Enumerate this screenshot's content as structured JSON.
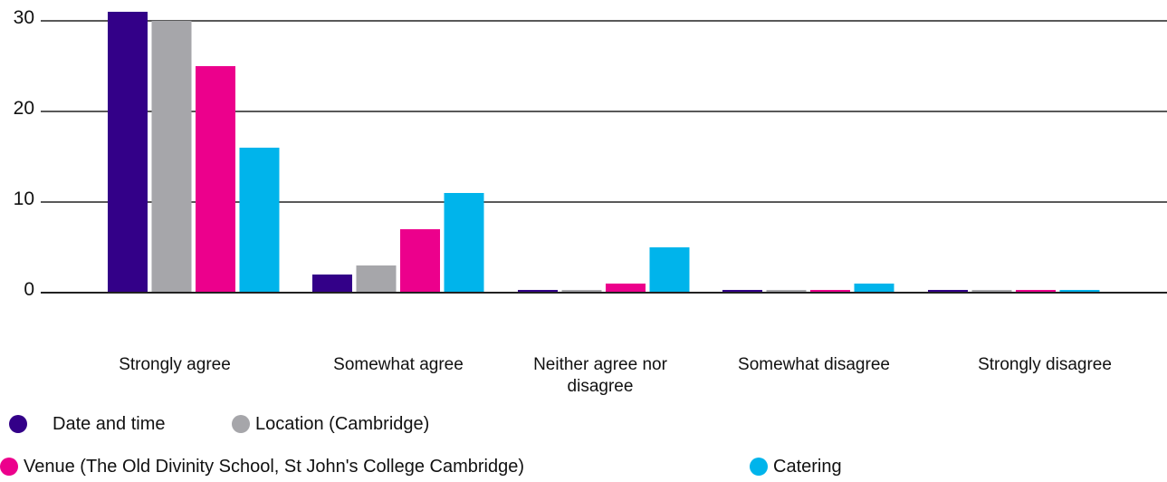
{
  "chart_data": {
    "type": "bar",
    "categories": [
      "Strongly agree",
      "Somewhat agree",
      "Neither agree nor disagree",
      "Somewhat disagree",
      "Strongly disagree"
    ],
    "series": [
      {
        "name": "Date and time",
        "color": "#330088",
        "values": [
          31,
          2,
          0,
          0,
          0
        ]
      },
      {
        "name": "Location (Cambridge)",
        "color": "#a6a6aa",
        "values": [
          30,
          3,
          0,
          0,
          0
        ]
      },
      {
        "name": "Venue (The Old Divinity School, St John's College Cambridge)",
        "color": "#ec008c",
        "values": [
          25,
          7,
          1,
          0,
          0
        ]
      },
      {
        "name": "Catering",
        "color": "#00b4eb",
        "values": [
          16,
          11,
          5,
          1,
          0
        ]
      }
    ],
    "ylim": [
      0,
      30
    ],
    "yticks": [
      "0",
      "10",
      "20",
      "30"
    ],
    "grid": true,
    "legend_position": "bottom"
  }
}
